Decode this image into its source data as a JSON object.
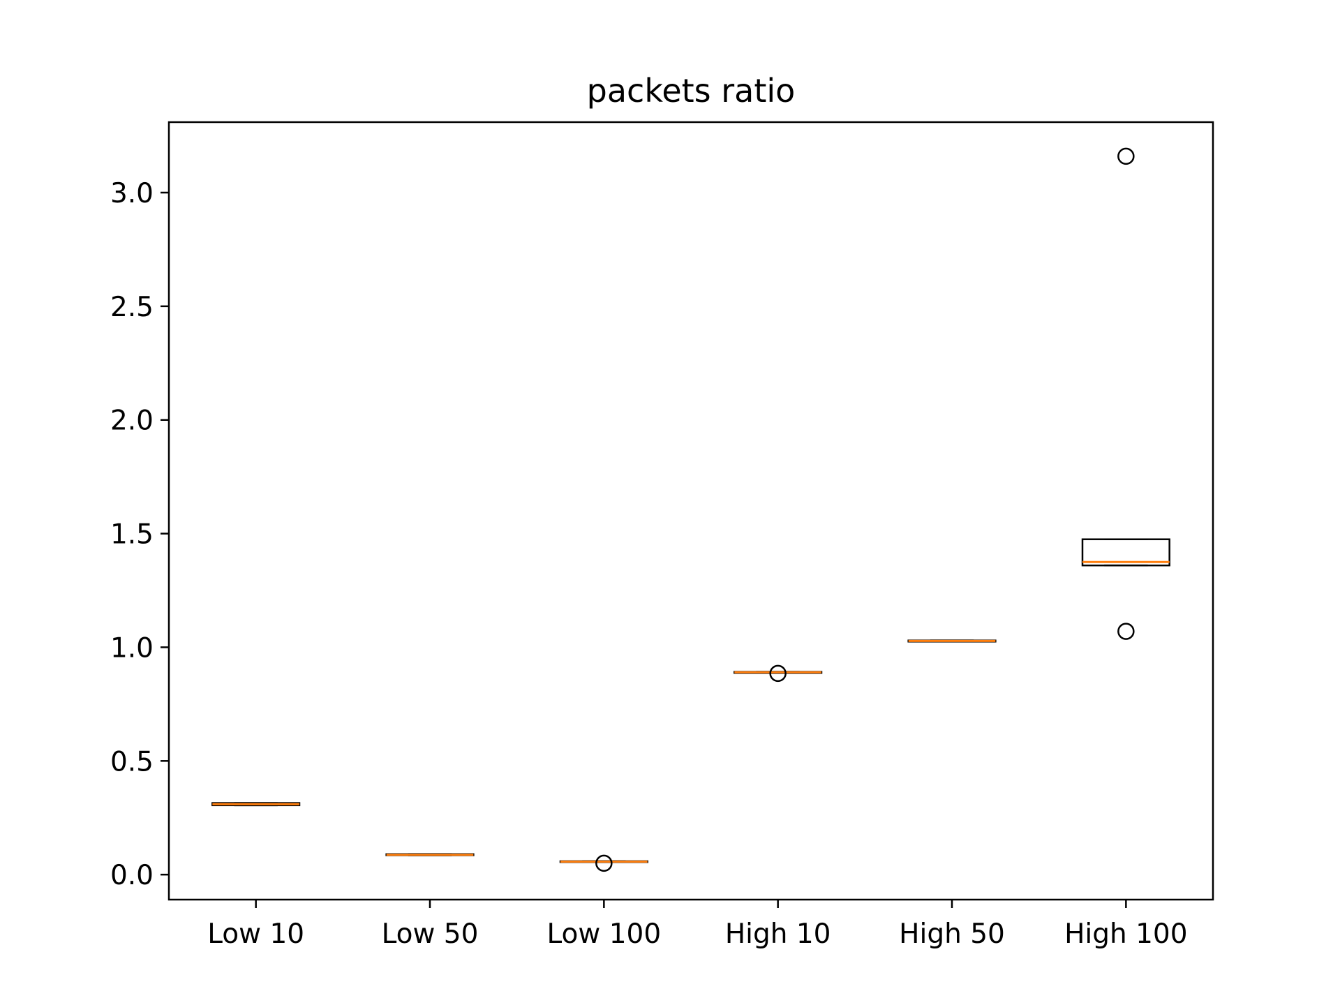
{
  "chart_data": {
    "type": "box",
    "title": "packets ratio",
    "xlabel": "",
    "ylabel": "",
    "ylim": [
      -0.11,
      3.31
    ],
    "yticks": [
      0.0,
      0.5,
      1.0,
      1.5,
      2.0,
      2.5,
      3.0
    ],
    "ytick_labels": [
      "0.0",
      "0.5",
      "1.0",
      "1.5",
      "2.0",
      "2.5",
      "3.0"
    ],
    "grid": false,
    "colors": {
      "box": "#000000",
      "median": "#ff7f0e"
    },
    "categories": [
      "Low 10",
      "Low 50",
      "Low 100",
      "High 10",
      "High 50",
      "High 100"
    ],
    "boxes": [
      {
        "name": "Low 10",
        "whisker_low": 0.305,
        "q1": 0.305,
        "median": 0.31,
        "q3": 0.315,
        "whisker_high": 0.315,
        "outliers": []
      },
      {
        "name": "Low 50",
        "whisker_low": 0.085,
        "q1": 0.085,
        "median": 0.087,
        "q3": 0.09,
        "whisker_high": 0.09,
        "outliers": []
      },
      {
        "name": "Low 100",
        "whisker_low": 0.055,
        "q1": 0.055,
        "median": 0.057,
        "q3": 0.059,
        "whisker_high": 0.059,
        "outliers": [
          0.05
        ]
      },
      {
        "name": "High 10",
        "whisker_low": 0.887,
        "q1": 0.887,
        "median": 0.89,
        "q3": 0.892,
        "whisker_high": 0.892,
        "outliers": [
          0.885
        ]
      },
      {
        "name": "High 50",
        "whisker_low": 1.025,
        "q1": 1.025,
        "median": 1.028,
        "q3": 1.03,
        "whisker_high": 1.03,
        "outliers": []
      },
      {
        "name": "High 100",
        "whisker_low": 1.36,
        "q1": 1.36,
        "median": 1.375,
        "q3": 1.475,
        "whisker_high": 1.475,
        "outliers": [
          3.16,
          1.07
        ]
      }
    ]
  }
}
